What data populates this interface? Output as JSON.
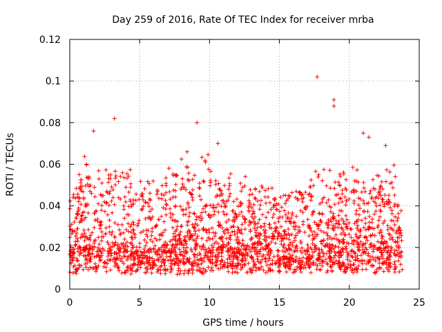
{
  "chart_data": {
    "type": "scatter",
    "title": "Day 259 of 2016, Rate Of TEC Index for receiver mrba",
    "xlabel": "GPS time / hours",
    "ylabel": "ROTI / TECUs",
    "xlim": [
      0,
      25
    ],
    "ylim": [
      0,
      0.12
    ],
    "xticks": [
      0,
      5,
      10,
      15,
      20,
      25
    ],
    "yticks": [
      0,
      0.02,
      0.04,
      0.06,
      0.08,
      0.1,
      0.12
    ],
    "xtick_labels": [
      "0",
      "5",
      "10",
      "15",
      "20",
      "25"
    ],
    "ytick_labels": [
      "0",
      "0.02",
      "0.04",
      "0.06",
      "0.08",
      "0.1",
      "0.12"
    ],
    "grid": true,
    "marker": "+",
    "color": "#ff0000",
    "notable_points": [
      {
        "x": 1.7,
        "y": 0.076
      },
      {
        "x": 3.2,
        "y": 0.082
      },
      {
        "x": 9.1,
        "y": 0.08
      },
      {
        "x": 17.7,
        "y": 0.102
      },
      {
        "x": 18.9,
        "y": 0.091
      },
      {
        "x": 18.9,
        "y": 0.088
      },
      {
        "x": 21.0,
        "y": 0.075
      },
      {
        "x": 21.4,
        "y": 0.073
      },
      {
        "x": 22.6,
        "y": 0.069
      },
      {
        "x": 10.6,
        "y": 0.07
      },
      {
        "x": 8.4,
        "y": 0.066
      },
      {
        "x": 1.2,
        "y": 0.06
      }
    ],
    "envelope": [
      {
        "x": 0,
        "base": 0.01,
        "peak": 0.042
      },
      {
        "x": 1,
        "base": 0.011,
        "peak": 0.055
      },
      {
        "x": 2,
        "base": 0.01,
        "peak": 0.05
      },
      {
        "x": 3,
        "base": 0.011,
        "peak": 0.058
      },
      {
        "x": 4,
        "base": 0.01,
        "peak": 0.052
      },
      {
        "x": 5,
        "base": 0.01,
        "peak": 0.048
      },
      {
        "x": 6,
        "base": 0.01,
        "peak": 0.046
      },
      {
        "x": 7,
        "base": 0.01,
        "peak": 0.05
      },
      {
        "x": 8,
        "base": 0.01,
        "peak": 0.055
      },
      {
        "x": 9,
        "base": 0.011,
        "peak": 0.058
      },
      {
        "x": 10,
        "base": 0.011,
        "peak": 0.06
      },
      {
        "x": 11,
        "base": 0.011,
        "peak": 0.05
      },
      {
        "x": 12,
        "base": 0.011,
        "peak": 0.048
      },
      {
        "x": 13,
        "base": 0.011,
        "peak": 0.045
      },
      {
        "x": 14,
        "base": 0.011,
        "peak": 0.048
      },
      {
        "x": 15,
        "base": 0.011,
        "peak": 0.047
      },
      {
        "x": 16,
        "base": 0.01,
        "peak": 0.046
      },
      {
        "x": 17,
        "base": 0.01,
        "peak": 0.045
      },
      {
        "x": 18,
        "base": 0.011,
        "peak": 0.056
      },
      {
        "x": 19,
        "base": 0.011,
        "peak": 0.052
      },
      {
        "x": 20,
        "base": 0.01,
        "peak": 0.048
      },
      {
        "x": 21,
        "base": 0.011,
        "peak": 0.055
      },
      {
        "x": 22,
        "base": 0.011,
        "peak": 0.052
      },
      {
        "x": 23,
        "base": 0.011,
        "peak": 0.055
      },
      {
        "x": 23.8,
        "base": 0.011,
        "peak": 0.045
      }
    ],
    "x_end": 23.8
  }
}
